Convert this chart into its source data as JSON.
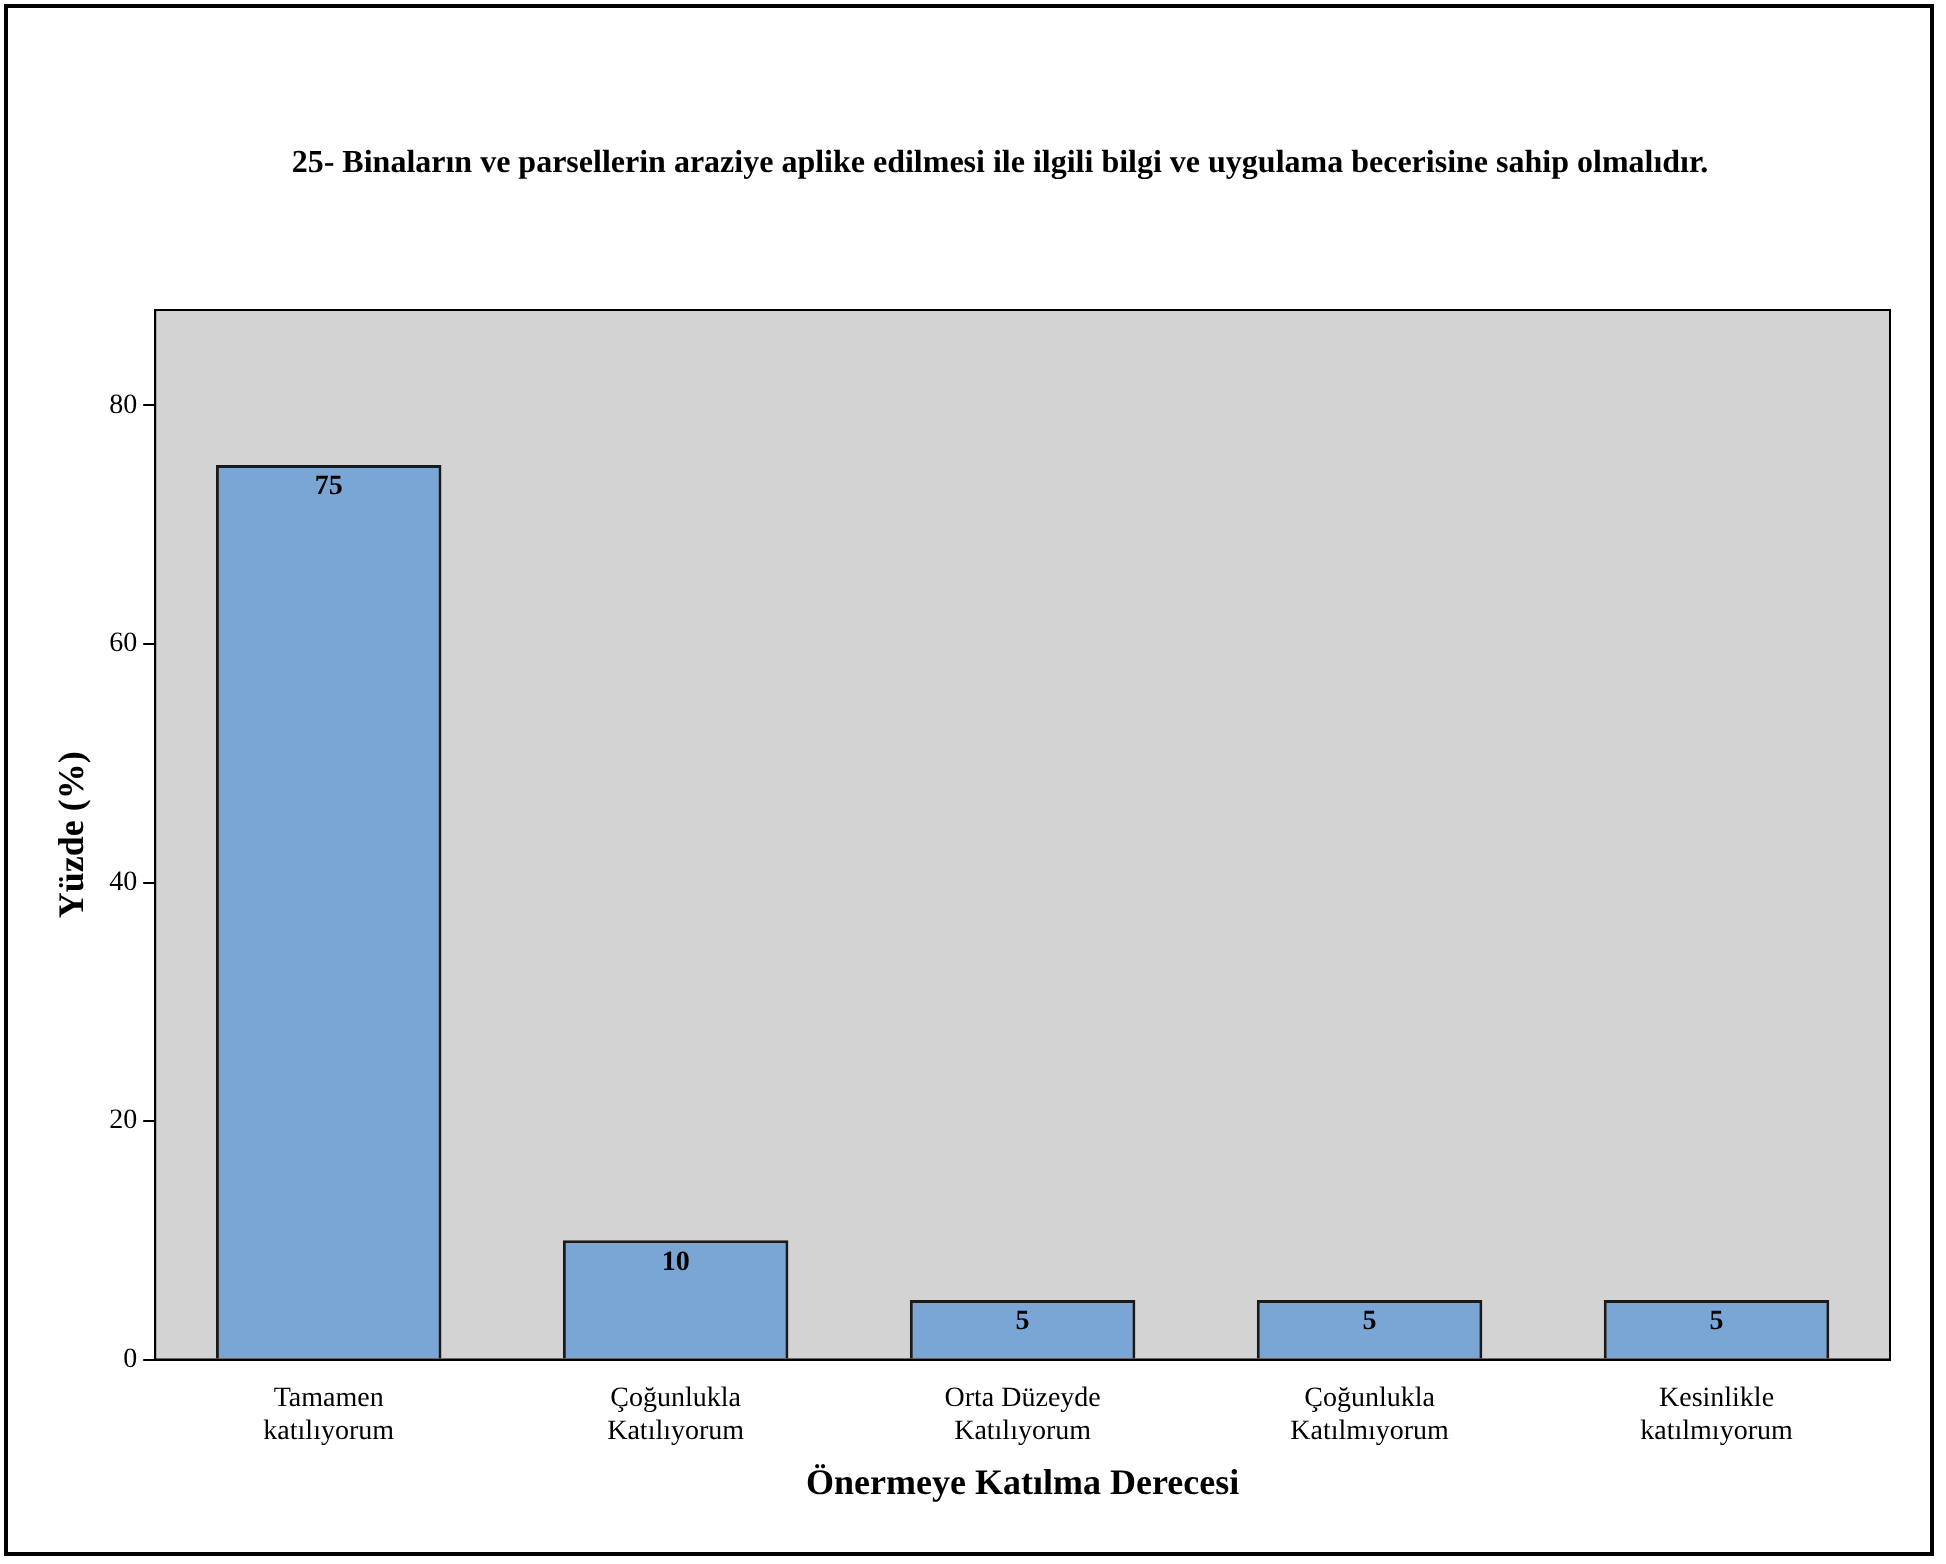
{
  "chart_data": {
    "type": "bar",
    "title": "25- Binaların ve parsellerin araziye aplike edilmesi ile ilgili bilgi ve uygulama becerisine sahip olmalıdır.",
    "xlabel": "Önermeye Katılma Derecesi",
    "ylabel": "Yüzde (%)",
    "categories": [
      "Tamamen\nkatılıyorum",
      "Çoğunlukla\nKatılıyorum",
      "Orta Düzeyde\nKatılıyorum",
      "Çoğunlukla\nKatılmıyorum",
      "Kesinlikle\nkatılmıyorum"
    ],
    "values": [
      75,
      10,
      5,
      5,
      5
    ],
    "color": "#7aa6d6",
    "ylim": [
      0,
      88
    ],
    "yticks": [
      0,
      20,
      40,
      60,
      80
    ],
    "grid": false,
    "legend": false,
    "data_labels": true
  }
}
